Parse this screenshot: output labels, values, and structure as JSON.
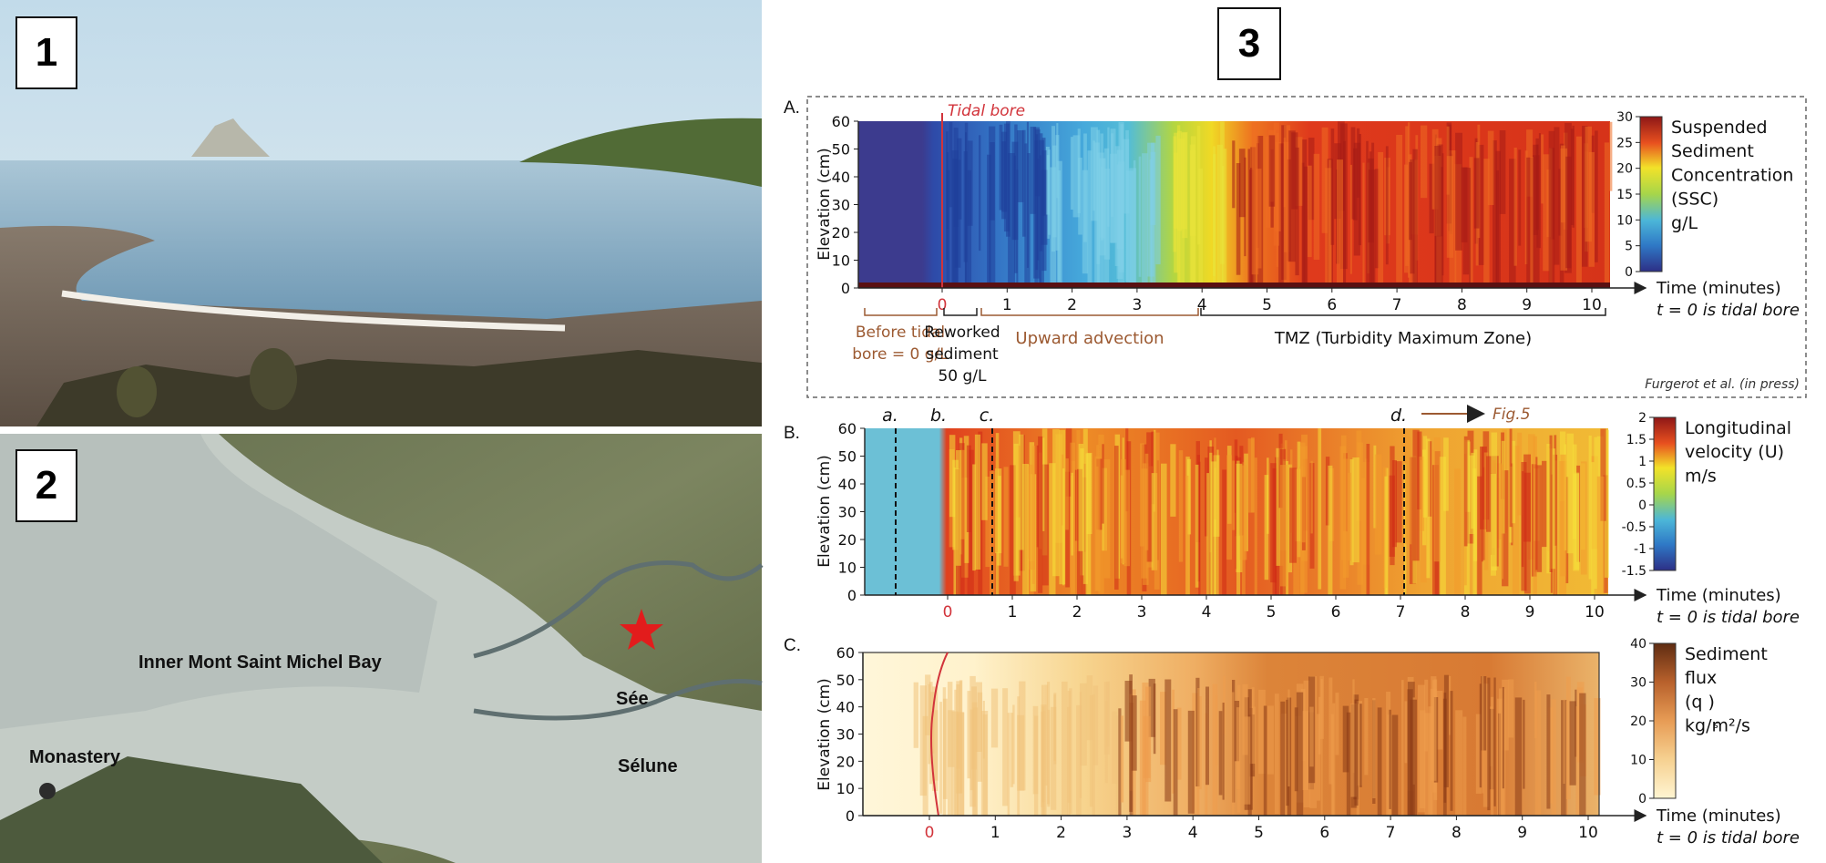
{
  "panel_numbers": [
    "1",
    "2",
    "3"
  ],
  "map_labels": {
    "bay": "Inner Mont Saint Michel Bay",
    "monastery": "Monastery",
    "see": "Sée",
    "selune": "Sélune"
  },
  "colors": {
    "star": "#e21c1c",
    "bore_line": "#d2343b",
    "brown_annot": "#9c5a32"
  },
  "panel_A": {
    "letter": "A.",
    "bore_label": "Tidal bore",
    "ylabel": "Elevation (cm)",
    "yticks": [
      "0",
      "10",
      "20",
      "30",
      "40",
      "50",
      "60"
    ],
    "xticks": [
      "0",
      "1",
      "2",
      "3",
      "4",
      "5",
      "6",
      "7",
      "8",
      "9",
      "10"
    ],
    "xlabel": "Time (minutes)",
    "xnote": "t = 0 is tidal bore",
    "cbar_ticks": [
      "0",
      "5",
      "10",
      "15",
      "20",
      "25",
      "30"
    ],
    "cbar_label": [
      "Suspended",
      "Sediment",
      "Concentration",
      "(SSC)",
      "g/L"
    ],
    "brace_labels": {
      "before": [
        "Before tidal",
        "bore = 0 g/L"
      ],
      "reworked": [
        "Reworked",
        "sediment",
        "50 g/L"
      ],
      "upward": "Upward advection",
      "tmz": "TMZ (Turbidity Maximum Zone)"
    },
    "credit": "Furgerot et al. (in press)"
  },
  "panel_B": {
    "letter": "B.",
    "ylabel": "Elevation (cm)",
    "yticks": [
      "0",
      "10",
      "20",
      "30",
      "40",
      "50",
      "60"
    ],
    "xticks": [
      "0",
      "1",
      "2",
      "3",
      "4",
      "5",
      "6",
      "7",
      "8",
      "9",
      "10"
    ],
    "xlabel": "Time (minutes)",
    "xnote": "t = 0 is tidal bore",
    "cbar_ticks": [
      "-1.5",
      "-1",
      "-0.5",
      "0",
      "0.5",
      "1",
      "1.5",
      "2"
    ],
    "cbar_label": [
      "Longitudinal",
      "velocity (U)",
      "m/s"
    ],
    "markers": [
      "a.",
      "b.",
      "c.",
      "d."
    ],
    "fig_ref": "Fig.5"
  },
  "panel_C": {
    "letter": "C.",
    "ylabel": "Elevation (cm)",
    "yticks": [
      "0",
      "10",
      "20",
      "30",
      "40",
      "50",
      "60"
    ],
    "xticks": [
      "0",
      "1",
      "2",
      "3",
      "4",
      "5",
      "6",
      "7",
      "8",
      "9",
      "10"
    ],
    "xlabel": "Time (minutes)",
    "xnote": "t = 0 is tidal bore",
    "cbar_ticks": [
      "0",
      "10",
      "20",
      "30",
      "40"
    ],
    "cbar_label": [
      "Sediment",
      "flux",
      "(q )",
      "kg/m²/s"
    ],
    "cbar_sub": "s"
  }
}
